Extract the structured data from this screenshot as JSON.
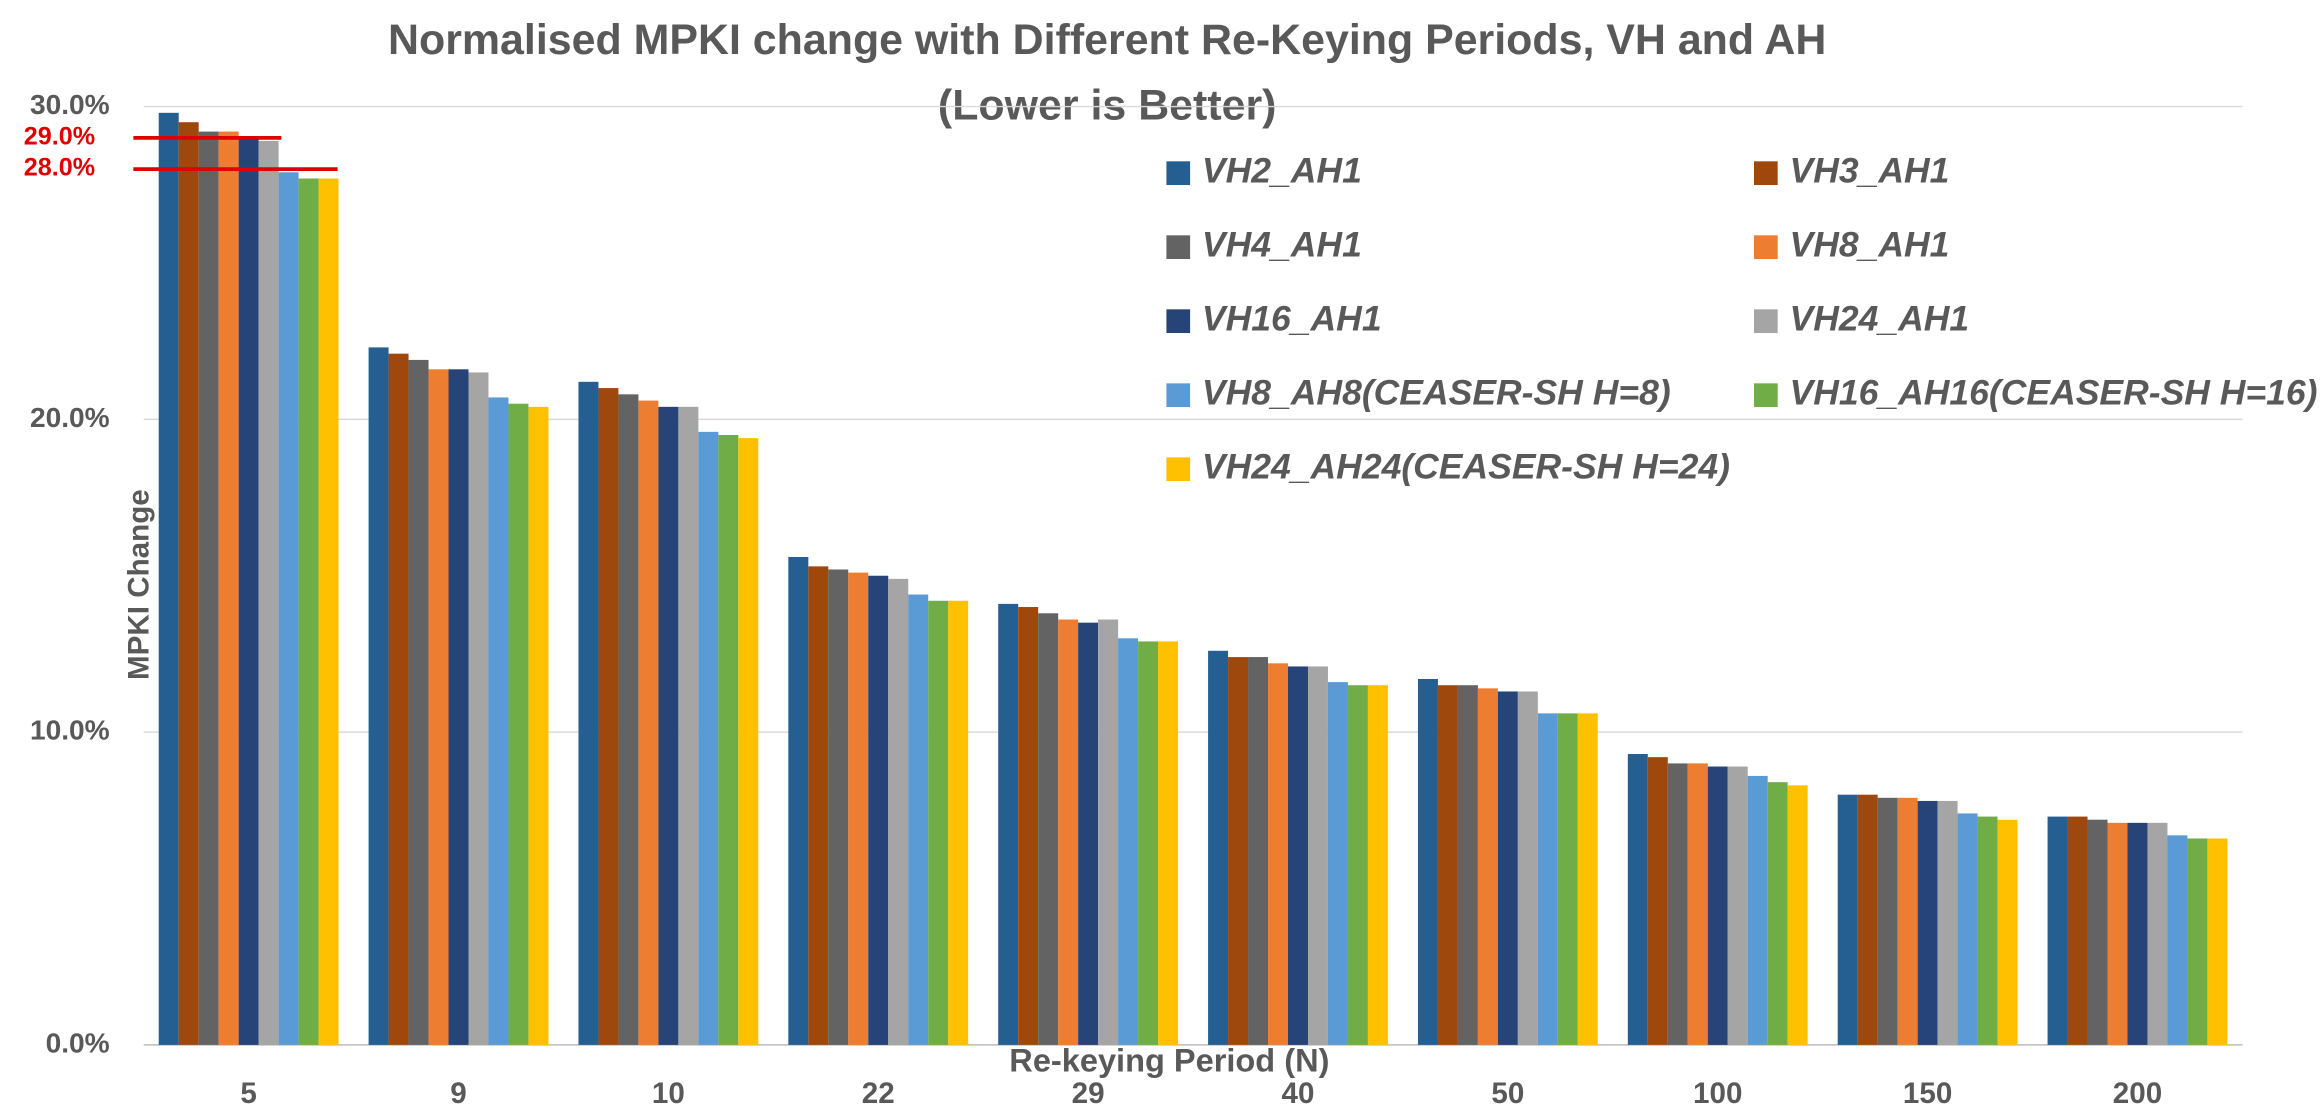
{
  "chart_data": {
    "type": "bar",
    "title": "Normalised MPKI change with Different Re-Keying Periods, VH and AH",
    "subtitle": "(Lower is Better)",
    "x_label": "Re-keying Period  (N)",
    "y_label": "MPKI Change",
    "categories": [
      "5",
      "9",
      "10",
      "22",
      "29",
      "40",
      "50",
      "100",
      "150",
      "200"
    ],
    "series": [
      {
        "name": "VH2_AH1",
        "color": "#255e91",
        "values": [
          29.8,
          22.3,
          21.2,
          15.6,
          14.1,
          12.6,
          11.7,
          9.3,
          8.0,
          7.3
        ]
      },
      {
        "name": "VH3_AH1",
        "color": "#9e480e",
        "values": [
          29.5,
          22.1,
          21.0,
          15.3,
          14.0,
          12.4,
          11.5,
          9.2,
          8.0,
          7.3
        ]
      },
      {
        "name": "VH4_AH1",
        "color": "#636363",
        "values": [
          29.2,
          21.9,
          20.8,
          15.2,
          13.8,
          12.4,
          11.5,
          9.0,
          7.9,
          7.2
        ]
      },
      {
        "name": "VH8_AH1",
        "color": "#ed7d31",
        "values": [
          29.2,
          21.6,
          20.6,
          15.1,
          13.6,
          12.2,
          11.4,
          9.0,
          7.9,
          7.1
        ]
      },
      {
        "name": "VH16_AH1",
        "color": "#264478",
        "values": [
          29.0,
          21.6,
          20.4,
          15.0,
          13.5,
          12.1,
          11.3,
          8.9,
          7.8,
          7.1
        ]
      },
      {
        "name": "VH24_AH1",
        "color": "#a5a5a5",
        "values": [
          28.9,
          21.5,
          20.4,
          14.9,
          13.6,
          12.1,
          11.3,
          8.9,
          7.8,
          7.1
        ]
      },
      {
        "name": "VH8_AH8(CEASER-SH H=8)",
        "color": "#5b9bd5",
        "values": [
          27.9,
          20.7,
          19.6,
          14.4,
          13.0,
          11.6,
          10.6,
          8.6,
          7.4,
          6.7
        ]
      },
      {
        "name": "VH16_AH16(CEASER-SH H=16)",
        "color": "#70ad47",
        "values": [
          27.7,
          20.5,
          19.5,
          14.2,
          12.9,
          11.5,
          10.6,
          8.4,
          7.3,
          6.6
        ]
      },
      {
        "name": "VH24_AH24(CEASER-SH H=24)",
        "color": "#ffc000",
        "values": [
          27.7,
          20.4,
          19.4,
          14.2,
          12.9,
          11.5,
          10.6,
          8.3,
          7.2,
          6.6
        ]
      }
    ],
    "ylim": [
      0,
      30
    ],
    "yticks": [
      {
        "value": 0,
        "label": "0.0%"
      },
      {
        "value": 10,
        "label": "10.0%"
      },
      {
        "value": 20,
        "label": "20.0%"
      },
      {
        "value": 30,
        "label": "30.0%"
      }
    ],
    "grid": true,
    "annotations": [
      {
        "value": 29,
        "label": "29.0%",
        "color": "#e00000"
      },
      {
        "value": 28,
        "label": "28.0%",
        "color": "#e00000"
      }
    ]
  }
}
